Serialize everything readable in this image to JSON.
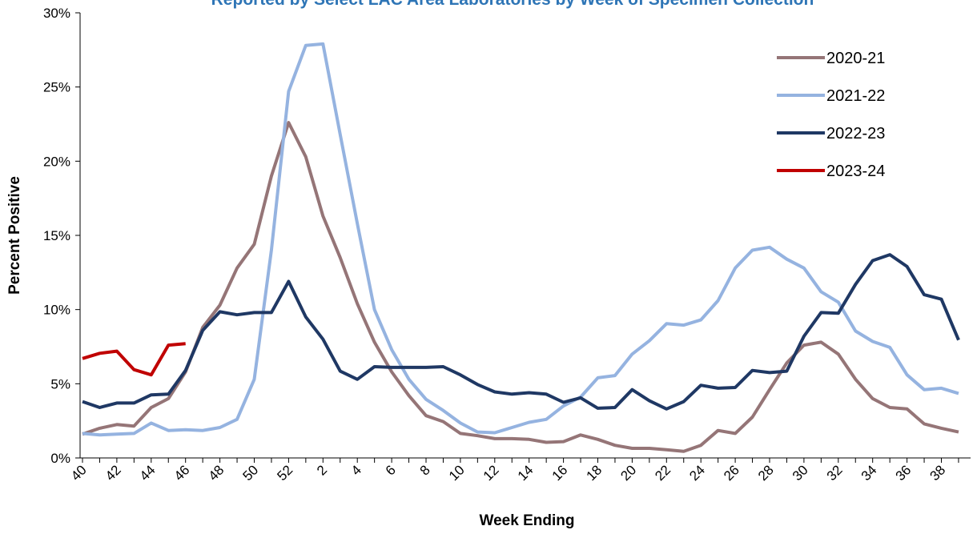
{
  "chart_data": {
    "type": "line",
    "title": "Reported by Select LAC Area Laboratories by Week of Specimen Collection",
    "x_label": "Week Ending",
    "y_label": "Percent Positive",
    "categories": [
      "40",
      null,
      "42",
      null,
      "44",
      null,
      "46",
      null,
      "48",
      null,
      "50",
      null,
      "52",
      null,
      "2",
      null,
      "4",
      null,
      "6",
      null,
      "8",
      null,
      "10",
      null,
      "12",
      null,
      "14",
      null,
      "16",
      null,
      "18",
      null,
      "20",
      null,
      "22",
      null,
      "24",
      null,
      "26",
      null,
      "28",
      null,
      "30",
      null,
      "32",
      null,
      "34",
      null,
      "36",
      null,
      "38",
      null
    ],
    "ylim": [
      0,
      30
    ],
    "yticks": [
      {
        "value": 0,
        "label": "0%"
      },
      {
        "value": 5,
        "label": "5%"
      },
      {
        "value": 10,
        "label": "10%"
      },
      {
        "value": 15,
        "label": "15%"
      },
      {
        "value": 20,
        "label": "20%"
      },
      {
        "value": 25,
        "label": "25%"
      },
      {
        "value": 30,
        "label": "30%"
      }
    ],
    "grid": false,
    "legend": "upper right",
    "series": [
      {
        "name": "2020-21",
        "color": "#957577",
        "values": [
          1.6,
          2.0,
          2.25,
          2.15,
          3.4,
          4.0,
          5.8,
          8.8,
          10.3,
          12.8,
          14.4,
          19.0,
          22.6,
          20.3,
          16.3,
          13.5,
          10.4,
          7.8,
          5.8,
          4.2,
          2.85,
          2.45,
          1.65,
          1.5,
          1.3,
          1.3,
          1.25,
          1.05,
          1.1,
          1.55,
          1.25,
          0.85,
          0.65,
          0.65,
          0.55,
          0.45,
          0.85,
          1.85,
          1.65,
          2.75,
          4.6,
          6.4,
          7.6,
          7.8,
          7.0,
          5.3,
          4.0,
          3.4,
          3.3,
          2.3,
          2.0,
          1.75
        ]
      },
      {
        "name": "2021-22",
        "color": "#95b3e0",
        "values": [
          1.65,
          1.55,
          1.6,
          1.65,
          2.35,
          1.85,
          1.9,
          1.85,
          2.05,
          2.6,
          5.3,
          14.0,
          24.7,
          27.8,
          27.9,
          21.8,
          15.8,
          10.0,
          7.3,
          5.3,
          3.95,
          3.2,
          2.35,
          1.75,
          1.7,
          2.05,
          2.4,
          2.6,
          3.5,
          4.1,
          5.4,
          5.55,
          7.0,
          7.9,
          9.05,
          8.95,
          9.3,
          10.6,
          12.8,
          14.0,
          14.2,
          13.4,
          12.8,
          11.2,
          10.5,
          8.55,
          7.85,
          7.45,
          5.6,
          4.6,
          4.7,
          4.35
        ]
      },
      {
        "name": "2022-23",
        "color": "#1f3864",
        "values": [
          3.8,
          3.4,
          3.7,
          3.7,
          4.25,
          4.3,
          5.9,
          8.6,
          9.85,
          9.65,
          9.8,
          9.8,
          11.9,
          9.5,
          8.0,
          5.85,
          5.3,
          6.15,
          6.1,
          6.1,
          6.1,
          6.15,
          5.6,
          4.95,
          4.45,
          4.3,
          4.4,
          4.3,
          3.75,
          4.05,
          3.35,
          3.4,
          4.6,
          3.85,
          3.3,
          3.8,
          4.9,
          4.7,
          4.75,
          5.9,
          5.75,
          5.85,
          8.2,
          9.8,
          9.75,
          11.7,
          13.3,
          13.7,
          12.9,
          11.0,
          10.7,
          7.95
        ]
      },
      {
        "name": "2023-24",
        "color": "#c00000",
        "values": [
          6.7,
          7.05,
          7.2,
          5.95,
          5.6,
          7.6,
          7.7,
          null,
          null,
          null,
          null,
          null,
          null,
          null,
          null,
          null,
          null,
          null,
          null,
          null,
          null,
          null,
          null,
          null,
          null,
          null,
          null,
          null,
          null,
          null,
          null,
          null,
          null,
          null,
          null,
          null,
          null,
          null,
          null,
          null,
          null,
          null,
          null,
          null,
          null,
          null,
          null,
          null,
          null,
          null,
          null,
          null
        ]
      }
    ]
  }
}
